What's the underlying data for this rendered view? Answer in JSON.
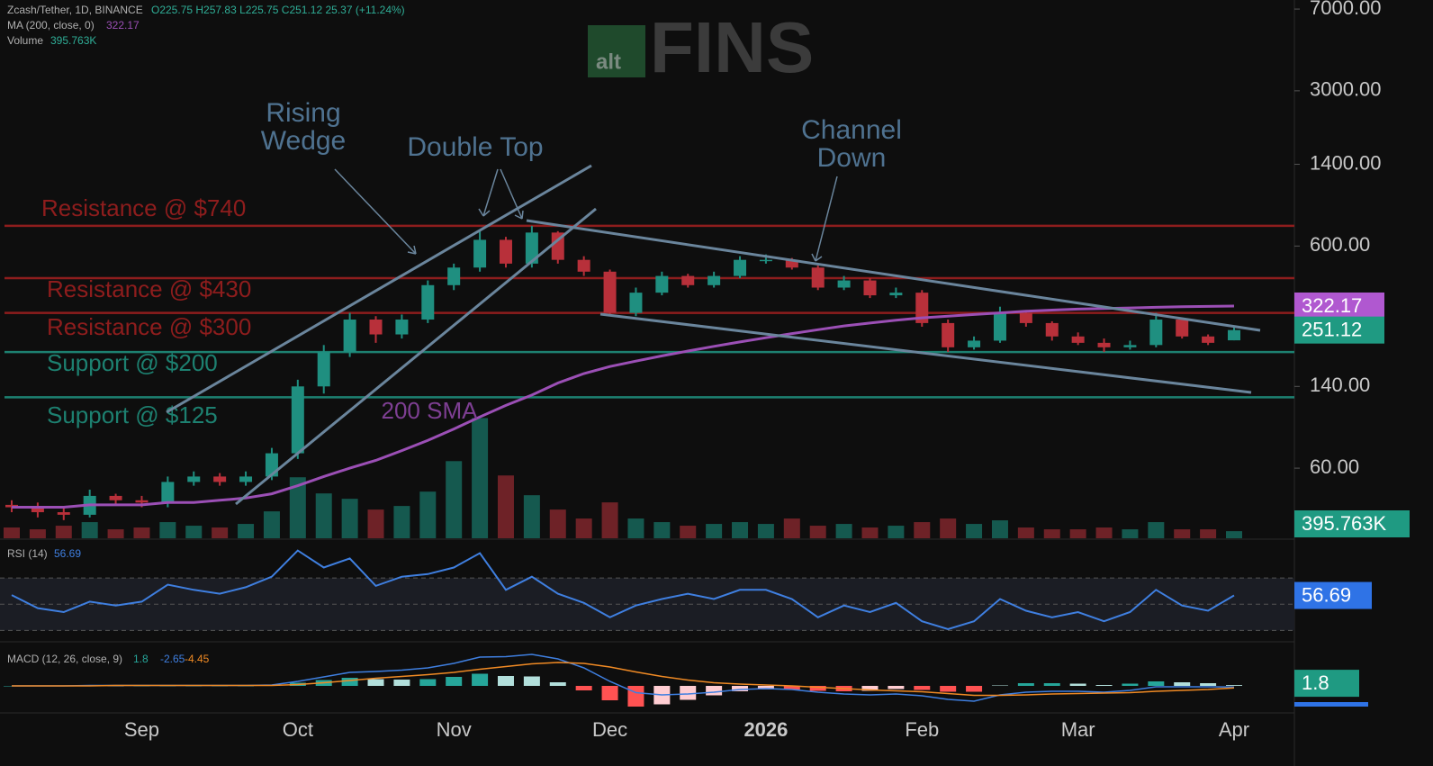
{
  "watermark": {
    "small": "alt",
    "large": "FINS"
  },
  "chart_data": [
    {
      "type": "candlestick",
      "title": "Zcash/Tether, 1D, BINANCE",
      "subtitle": "O225.75 H257.83 L225.75 C251.12 25.37 (+11.24%)",
      "log_scale": true,
      "ylim": [
        29,
        7690
      ],
      "yticks": [
        {
          "value": 7000,
          "label": "7000.00"
        },
        {
          "value": 3000,
          "label": "3000.00"
        },
        {
          "value": 1400,
          "label": "1400.00"
        },
        {
          "value": 600,
          "label": "600.00"
        },
        {
          "value": 140,
          "label": "140.00"
        },
        {
          "value": 60,
          "label": "60.00"
        }
      ],
      "up_color": "#1f8f80",
      "down_color": "#b8303a",
      "categories": [
        null,
        null,
        null,
        null,
        null,
        "Sep",
        null,
        null,
        null,
        null,
        null,
        "Oct",
        null,
        null,
        null,
        null,
        null,
        "Nov",
        null,
        null,
        null,
        null,
        null,
        "Dec",
        null,
        null,
        null,
        null,
        null,
        "2026",
        null,
        null,
        null,
        null,
        null,
        "Feb",
        null,
        null,
        null,
        null,
        null,
        "Mar",
        null,
        null,
        null,
        null,
        null,
        "Apr"
      ],
      "open": [
        41,
        40,
        38,
        37,
        45,
        43,
        42,
        52,
        55,
        52,
        55,
        70,
        140,
        200,
        280,
        240,
        280,
        400,
        480,
        640,
        500,
        690,
        520,
        460,
        300,
        370,
        440,
        400,
        440,
        520,
        520,
        480,
        390,
        420,
        360,
        370,
        270,
        210,
        225,
        300,
        270,
        235,
        220,
        210,
        215,
        280,
        235,
        225.75
      ],
      "high": [
        43,
        42,
        40,
        48,
        46,
        45,
        55,
        58,
        57,
        58,
        74,
        150,
        215,
        300,
        290,
        295,
        420,
        500,
        700,
        660,
        740,
        700,
        540,
        470,
        390,
        460,
        450,
        460,
        540,
        550,
        530,
        490,
        440,
        430,
        390,
        380,
        280,
        235,
        320,
        305,
        275,
        245,
        230,
        225,
        300,
        285,
        240,
        257.83
      ],
      "low": [
        38,
        36,
        35,
        36,
        41,
        40,
        40,
        50,
        50,
        50,
        53,
        66,
        130,
        190,
        220,
        230,
        270,
        380,
        460,
        480,
        480,
        500,
        440,
        290,
        290,
        360,
        390,
        390,
        430,
        500,
        470,
        380,
        380,
        350,
        350,
        260,
        200,
        205,
        220,
        260,
        225,
        215,
        200,
        205,
        210,
        230,
        215,
        225.75
      ],
      "close": [
        40,
        38,
        37,
        45,
        43,
        42,
        52,
        55,
        52,
        55,
        70,
        140,
        200,
        280,
        240,
        280,
        400,
        480,
        640,
        500,
        690,
        520,
        460,
        300,
        370,
        440,
        400,
        440,
        520,
        520,
        480,
        390,
        420,
        360,
        370,
        270,
        210,
        225,
        300,
        270,
        235,
        220,
        210,
        215,
        280,
        235,
        220,
        251.12
      ],
      "series": [
        {
          "name": "MA (200, close, 0)",
          "color": "#9b4fb5",
          "values": [
            40,
            40,
            40,
            41,
            41,
            41,
            42,
            42,
            43,
            44,
            46,
            50,
            55,
            60,
            65,
            72,
            80,
            90,
            102,
            115,
            128,
            145,
            160,
            172,
            182,
            192,
            202,
            212,
            222,
            232,
            242,
            252,
            262,
            270,
            278,
            285,
            290,
            295,
            300,
            305,
            309,
            312,
            314,
            316,
            318,
            320,
            321,
            322.17
          ]
        }
      ],
      "volume": {
        "name": "Volume",
        "ylim": [
          0,
          30000000
        ],
        "values": [
          600000,
          500000,
          700000,
          900000,
          500000,
          600000,
          900000,
          700000,
          600000,
          800000,
          1500000,
          3400000,
          2500000,
          2200000,
          1600000,
          1800000,
          2600000,
          4300000,
          6700000,
          3500000,
          2400000,
          1600000,
          1100000,
          2000000,
          1100000,
          900000,
          700000,
          800000,
          900000,
          800000,
          1100000,
          700000,
          800000,
          600000,
          700000,
          900000,
          1100000,
          800000,
          1000000,
          600000,
          500000,
          500000,
          600000,
          500000,
          900000,
          500000,
          500000,
          395763
        ],
        "value_labels": [
          null,
          null,
          null,
          null,
          null,
          null,
          null,
          null,
          null,
          null,
          null,
          null,
          null,
          null,
          null,
          null,
          null,
          null,
          null,
          null,
          null,
          null,
          null,
          null,
          null,
          null,
          null,
          null,
          null,
          null,
          null,
          null,
          null,
          null,
          null,
          null,
          null,
          null,
          null,
          null,
          null,
          null,
          null,
          null,
          null,
          null,
          null,
          "395.763K"
        ]
      },
      "levels": [
        {
          "label": "Resistance @ $740",
          "value": 740,
          "color": "#8e1d1d"
        },
        {
          "label": "Resistance @ $430",
          "value": 430,
          "color": "#8e1d1d"
        },
        {
          "label": "Resistance @ $300",
          "value": 300,
          "color": "#8e1d1d"
        },
        {
          "label": "Support @ $200",
          "value": 200,
          "color": "#1d8070"
        },
        {
          "label": "Support @ $125",
          "value": 125,
          "color": "#1d8070"
        }
      ],
      "annotations": [
        {
          "lines": [
            "Rising",
            "Wedge"
          ]
        },
        {
          "lines": [
            "Double Top"
          ]
        },
        {
          "lines": [
            "Channel",
            "Down"
          ]
        },
        {
          "lines": [
            "200 SMA"
          ]
        }
      ]
    },
    {
      "type": "line",
      "ylim": [
        22,
        99
      ],
      "bands": [
        30,
        70
      ],
      "midline": 50,
      "series": [
        {
          "name": "RSI (14)",
          "color": "#3f7fe0",
          "values": [
            57,
            47,
            44,
            52,
            49,
            52,
            65,
            61,
            58,
            63,
            71,
            91,
            78,
            85,
            64,
            71,
            73,
            78,
            89,
            61,
            71,
            58,
            51,
            40,
            49,
            54,
            58,
            54,
            61,
            61,
            54,
            40,
            49,
            44,
            51,
            37,
            31,
            37,
            54,
            45,
            40,
            44,
            37,
            44,
            61,
            49,
            45,
            56.69
          ]
        }
      ]
    },
    {
      "type": "macd",
      "title": "MACD (12, 26, close, 9)",
      "ylim": [
        -56,
        94
      ],
      "series": [
        {
          "name": "Histogram",
          "color": "#26a69a",
          "values": [
            0,
            0,
            0,
            1,
            0,
            0,
            0,
            0,
            0,
            0,
            1,
            7,
            13,
            18,
            15,
            14,
            15,
            20,
            27,
            22,
            21,
            8,
            -10,
            -32,
            -46,
            -41,
            -31,
            -21,
            -12,
            -8,
            -8,
            -11,
            -12,
            -11,
            -7,
            -9,
            -13,
            -13,
            1,
            6,
            6,
            5,
            2,
            5,
            10,
            8,
            6,
            1.8
          ]
        },
        {
          "name": "MACD",
          "color": "#3f7fe0",
          "values": [
            0,
            0,
            0,
            1,
            1,
            1,
            1,
            1,
            1,
            1,
            2,
            10,
            20,
            30,
            32,
            35,
            40,
            50,
            64,
            65,
            70,
            60,
            40,
            10,
            -15,
            -20,
            -18,
            -14,
            -8,
            -6,
            -8,
            -14,
            -18,
            -20,
            -18,
            -22,
            -30,
            -34,
            -20,
            -14,
            -12,
            -12,
            -14,
            -10,
            -2,
            -2,
            -2,
            -2.65
          ]
        },
        {
          "name": "Signal",
          "color": "#f08a24",
          "values": [
            0,
            0,
            0,
            0,
            1,
            1,
            1,
            1,
            1,
            1,
            1,
            3,
            7,
            12,
            17,
            21,
            25,
            30,
            37,
            43,
            49,
            52,
            50,
            42,
            31,
            21,
            13,
            7,
            4,
            2,
            0,
            -3,
            -6,
            -9,
            -11,
            -13,
            -17,
            -21,
            -21,
            -20,
            -18,
            -17,
            -16,
            -15,
            -12,
            -10,
            -8,
            -4.45
          ]
        }
      ]
    }
  ]
}
